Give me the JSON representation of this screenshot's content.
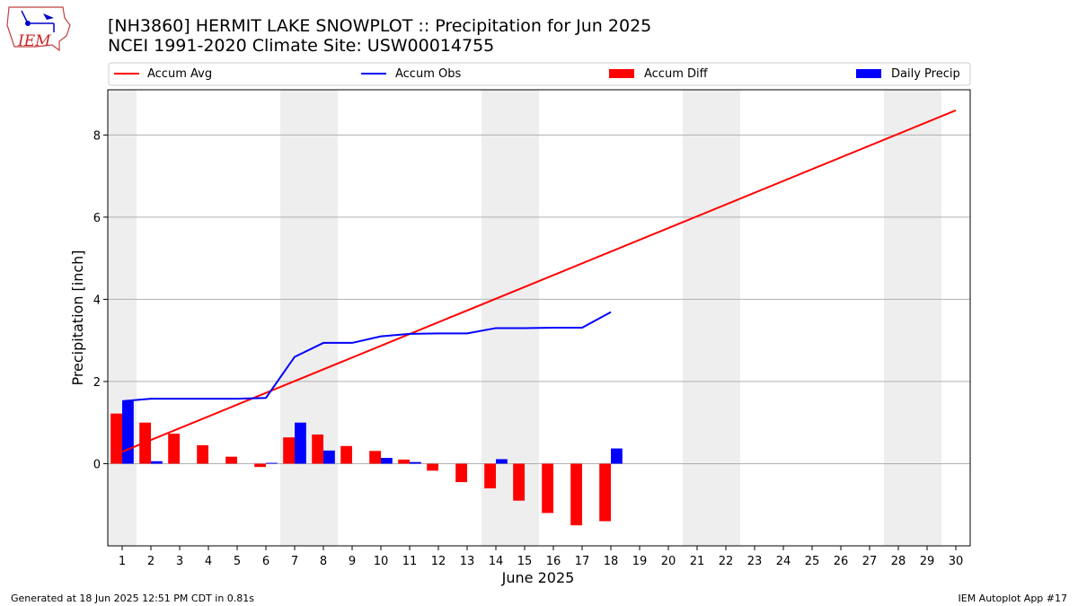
{
  "header": {
    "title_line1": "[NH3860] HERMIT LAKE SNOWPLOT :: Precipitation for Jun 2025",
    "title_line2": "NCEI 1991-2020 Climate Site: USW00014755",
    "logo_text": "IEM"
  },
  "footer": {
    "left": "Generated at 18 Jun 2025 12:51 PM CDT in 0.81s",
    "right": "IEM Autoplot App #17"
  },
  "colors": {
    "avg": "#ff0000",
    "obs": "#0000ff",
    "diff": "#ff0000",
    "daily": "#0000ff",
    "weekend_shade": "#eeeeee",
    "grid": "#b0b0b0"
  },
  "chart_data": {
    "type": "bar",
    "title": "[NH3860] HERMIT LAKE SNOWPLOT :: Precipitation for Jun 2025",
    "subtitle": "NCEI 1991-2020 Climate Site: USW00014755",
    "xlabel": "June 2025",
    "ylabel": "Precipitation [inch]",
    "xlim": [
      0.5,
      30.5
    ],
    "ylim": [
      -2.0,
      9.1
    ],
    "yticks": [
      0,
      2,
      4,
      6,
      8
    ],
    "ytick_labels": [
      "0",
      "2",
      "4",
      "6",
      "8"
    ],
    "x": [
      1,
      2,
      3,
      4,
      5,
      6,
      7,
      8,
      9,
      10,
      11,
      12,
      13,
      14,
      15,
      16,
      17,
      18,
      19,
      20,
      21,
      22,
      23,
      24,
      25,
      26,
      27,
      28,
      29,
      30
    ],
    "xtick_labels": [
      "1",
      "2",
      "3",
      "4",
      "5",
      "6",
      "7",
      "8",
      "9",
      "10",
      "11",
      "12",
      "13",
      "14",
      "15",
      "16",
      "17",
      "18",
      "19",
      "20",
      "21",
      "22",
      "23",
      "24",
      "25",
      "26",
      "27",
      "28",
      "29",
      "30"
    ],
    "grid": "horizontal",
    "legend_position": "top",
    "weekend_days": [
      1,
      7,
      8,
      14,
      15,
      21,
      22,
      28,
      29
    ],
    "series": [
      {
        "name": "Accum Avg",
        "kind": "line",
        "x": [
          1,
          30
        ],
        "values": [
          0.29,
          8.6
        ]
      },
      {
        "name": "Accum Obs",
        "kind": "line",
        "x": [
          1,
          2,
          3,
          4,
          5,
          6,
          7,
          8,
          9,
          10,
          11,
          12,
          13,
          14,
          15,
          16,
          17,
          18
        ],
        "values": [
          1.52,
          1.58,
          1.58,
          1.58,
          1.58,
          1.6,
          2.6,
          2.94,
          2.94,
          3.1,
          3.16,
          3.17,
          3.17,
          3.3,
          3.3,
          3.31,
          3.31,
          3.69
        ]
      },
      {
        "name": "Accum Diff",
        "kind": "bar",
        "x": [
          1,
          2,
          3,
          4,
          5,
          6,
          7,
          8,
          9,
          10,
          11,
          12,
          13,
          14,
          15,
          16,
          17,
          18
        ],
        "values": [
          1.22,
          1.0,
          0.73,
          0.45,
          0.17,
          -0.08,
          0.64,
          0.71,
          0.43,
          0.31,
          0.1,
          -0.17,
          -0.45,
          -0.6,
          -0.9,
          -1.2,
          -1.5,
          -1.4
        ]
      },
      {
        "name": "Daily Precip",
        "kind": "bar",
        "x": [
          1,
          2,
          3,
          4,
          5,
          6,
          7,
          8,
          9,
          10,
          11,
          12,
          13,
          14,
          15,
          16,
          17,
          18
        ],
        "values": [
          1.52,
          0.06,
          0,
          0,
          0,
          0.02,
          1.0,
          0.32,
          0,
          0.14,
          0.04,
          0,
          0,
          0.11,
          0,
          0,
          0,
          0.37
        ]
      }
    ]
  }
}
